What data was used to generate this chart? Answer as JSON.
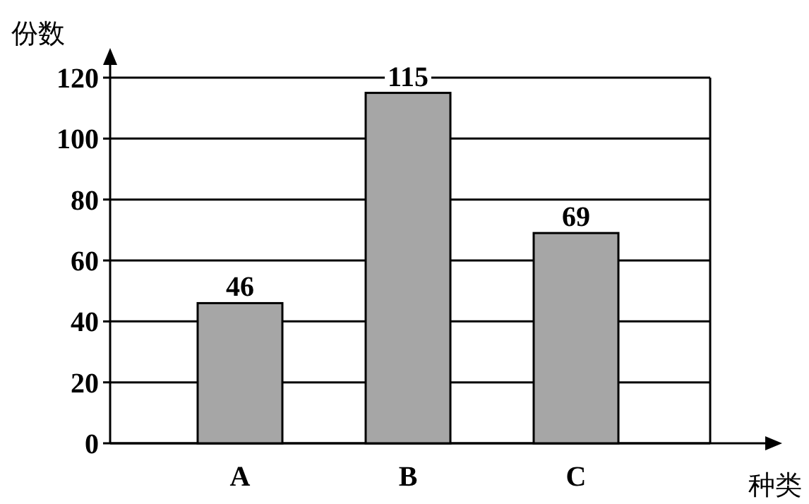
{
  "chart_data": {
    "type": "bar",
    "xlabel": "种类",
    "ylabel": "份数",
    "categories": [
      "A",
      "B",
      "C"
    ],
    "values": [
      46,
      115,
      69
    ],
    "color": "#a6a6a6",
    "ylim": [
      0,
      120
    ],
    "yticks": [
      0,
      20,
      40,
      60,
      80,
      100,
      120
    ],
    "grid": "y",
    "data_labels": true
  }
}
